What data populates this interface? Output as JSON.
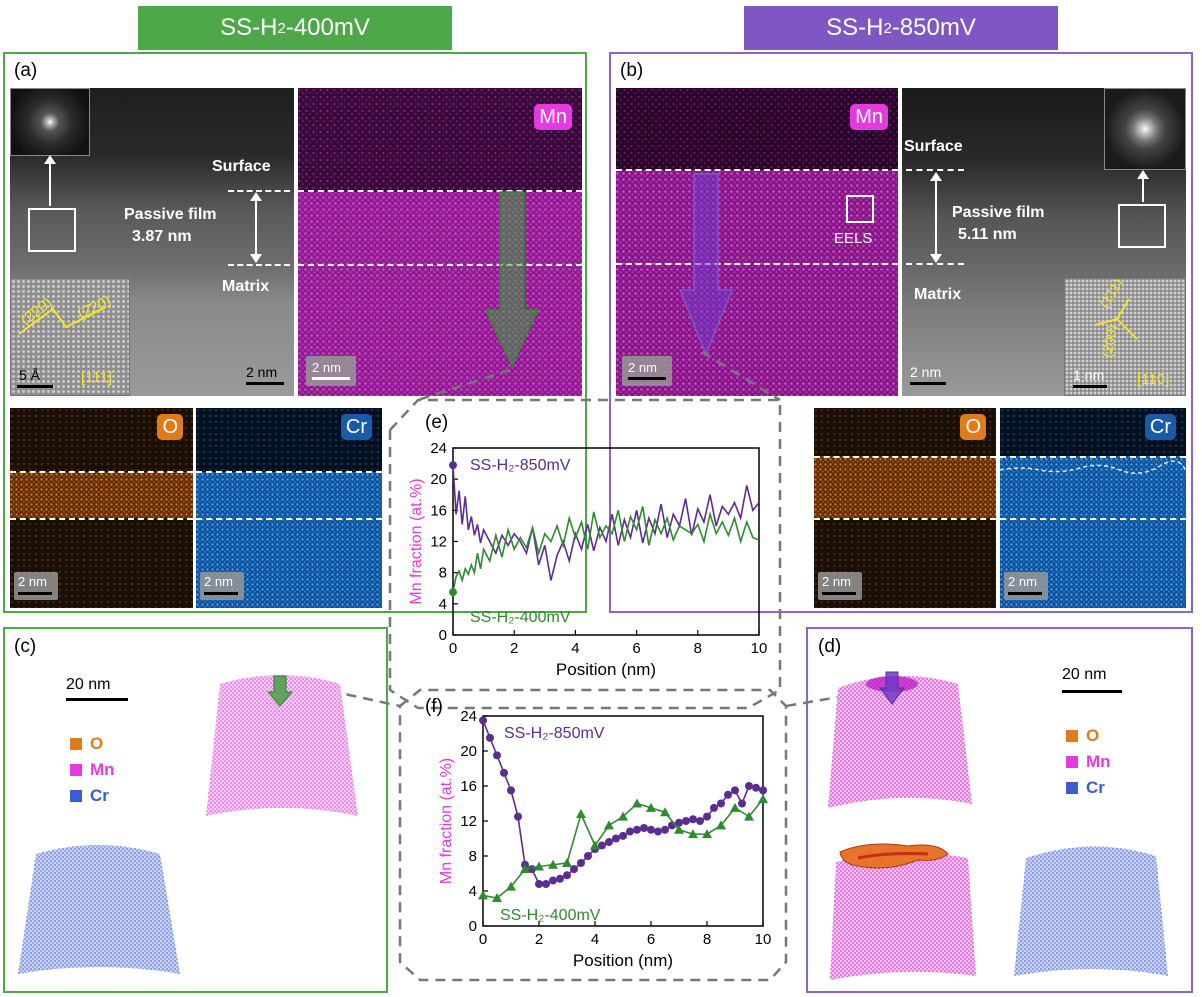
{
  "headers": {
    "left": {
      "prefix": "SS-H",
      "sub": "2",
      "suffix": "-400mV",
      "color": "#4ea849"
    },
    "right": {
      "prefix": "SS-H",
      "sub": "2",
      "suffix": "-850mV",
      "color": "#7e57c2"
    }
  },
  "panels": {
    "a": {
      "label": "(a)",
      "surface": "Surface",
      "film_label": "Passive film",
      "film_thickness": "3.87  nm",
      "matrix": "Matrix",
      "plane1": "(2̄20)",
      "plane2": "(2̄20)",
      "zone": "[111]",
      "scale_inset": "5 Å",
      "scale_main": "2 nm",
      "scale_mn": "2 nm",
      "tag_mn": "Mn",
      "tag_o": "O",
      "tag_cr": "Cr",
      "scale_o": "2 nm",
      "scale_cr": "2 nm"
    },
    "b": {
      "label": "(b)",
      "surface": "Surface",
      "film_label": "Passive film",
      "film_thickness": "5.11  nm",
      "matrix": "Matrix",
      "plane1": "(1̄11)",
      "plane2": "(200)",
      "zone": "[110]",
      "scale_inset": "1 nm",
      "scale_main": "2 nm",
      "scale_mn": "2 nm",
      "tag_mn": "Mn",
      "eels": "EELS",
      "tag_o": "O",
      "tag_cr": "Cr",
      "scale_o": "2 nm",
      "scale_cr": "2 nm"
    },
    "c": {
      "label": "(c)",
      "scale": "20 nm",
      "legend": [
        "O",
        "Mn",
        "Cr"
      ]
    },
    "d": {
      "label": "(d)",
      "scale": "20 nm",
      "legend": [
        "O",
        "Mn",
        "Cr"
      ]
    },
    "e": {
      "label": "(e)"
    },
    "f": {
      "label": "(f)"
    }
  },
  "colors": {
    "o": "#e07b1a",
    "mn": "#e43ae0",
    "cr": "#2c7fd6",
    "cr_legend": "#3b5bd9",
    "green": "#2e8b2e",
    "purple": "#5b2d91"
  },
  "chart_data": [
    {
      "type": "line",
      "panel": "e",
      "xlabel": "Position (nm)",
      "ylabel": "Mn fraction (at.%)",
      "xlim": [
        0,
        10
      ],
      "ylim": [
        0,
        24
      ],
      "xticks": [
        0,
        2,
        4,
        6,
        8,
        10
      ],
      "yticks": [
        0,
        4,
        8,
        12,
        16,
        20,
        24
      ],
      "series": [
        {
          "name": "SS-H₂-850mV",
          "color": "#5b2d91",
          "x": [
            0,
            0.1,
            0.2,
            0.3,
            0.4,
            0.5,
            0.6,
            0.7,
            0.8,
            0.9,
            1.0,
            1.2,
            1.4,
            1.6,
            1.8,
            2.0,
            2.2,
            2.4,
            2.6,
            2.8,
            3.0,
            3.2,
            3.4,
            3.6,
            3.8,
            4.0,
            4.2,
            4.4,
            4.6,
            4.8,
            5.0,
            5.2,
            5.4,
            5.6,
            5.8,
            6.0,
            6.2,
            6.4,
            6.6,
            6.8,
            7.0,
            7.2,
            7.4,
            7.6,
            7.8,
            8.0,
            8.2,
            8.4,
            8.6,
            8.8,
            9.0,
            9.2,
            9.4,
            9.6,
            9.8,
            10.0
          ],
          "y": [
            21.8,
            15.5,
            18.5,
            14.2,
            17.8,
            13.5,
            15.2,
            12.8,
            14.2,
            11.8,
            13.5,
            12.0,
            10.5,
            12.8,
            11.5,
            13.0,
            12.0,
            10.5,
            13.8,
            9.0,
            11.5,
            7.0,
            10.2,
            12.0,
            9.5,
            13.0,
            11.0,
            14.2,
            10.8,
            13.8,
            12.0,
            15.5,
            11.5,
            14.8,
            12.5,
            16.0,
            11.8,
            15.0,
            13.0,
            16.8,
            12.5,
            15.5,
            14.0,
            17.5,
            12.8,
            16.2,
            14.5,
            18.0,
            14.0,
            16.5,
            15.5,
            17.0,
            15.0,
            19.2,
            16.0,
            17.0
          ]
        },
        {
          "name": "SS-H₂-400mV",
          "color": "#2e8b2e",
          "x": [
            0,
            0.1,
            0.2,
            0.3,
            0.4,
            0.5,
            0.6,
            0.7,
            0.8,
            0.9,
            1.0,
            1.2,
            1.4,
            1.6,
            1.8,
            2.0,
            2.2,
            2.4,
            2.6,
            2.8,
            3.0,
            3.2,
            3.4,
            3.6,
            3.8,
            4.0,
            4.2,
            4.4,
            4.6,
            4.8,
            5.0,
            5.2,
            5.4,
            5.6,
            5.8,
            6.0,
            6.2,
            6.4,
            6.6,
            6.8,
            7.0,
            7.2,
            7.4,
            7.6,
            7.8,
            8.0,
            8.2,
            8.4,
            8.6,
            8.8,
            9.0,
            9.2,
            9.4,
            9.6,
            9.8,
            10.0
          ],
          "y": [
            5.5,
            7.5,
            8.2,
            7.0,
            8.5,
            7.8,
            9.0,
            8.0,
            10.5,
            8.5,
            11.0,
            9.5,
            12.8,
            10.0,
            13.5,
            11.0,
            12.5,
            11.2,
            13.8,
            10.5,
            13.0,
            12.0,
            14.0,
            11.5,
            15.0,
            12.5,
            14.5,
            11.0,
            15.8,
            12.5,
            14.0,
            13.0,
            16.0,
            12.0,
            15.2,
            13.5,
            16.5,
            11.5,
            14.8,
            13.0,
            15.0,
            12.2,
            14.0,
            13.5,
            13.0,
            14.2,
            12.0,
            15.5,
            13.0,
            14.5,
            12.8,
            15.0,
            12.0,
            14.5,
            12.5,
            12.2
          ]
        }
      ]
    },
    {
      "type": "line",
      "panel": "f",
      "xlabel": "Position (nm)",
      "ylabel": "Mn fraction (at.%)",
      "xlim": [
        0,
        10
      ],
      "ylim": [
        0,
        24
      ],
      "xticks": [
        0,
        2,
        4,
        6,
        8,
        10
      ],
      "yticks": [
        0,
        4,
        8,
        12,
        16,
        20,
        24
      ],
      "series": [
        {
          "name": "SS-H₂-850mV",
          "color": "#5b2d91",
          "marker": "circle",
          "x": [
            0,
            0.25,
            0.5,
            0.75,
            1.0,
            1.25,
            1.5,
            1.75,
            2.0,
            2.25,
            2.5,
            2.75,
            3.0,
            3.25,
            3.5,
            3.75,
            4.0,
            4.25,
            4.5,
            4.75,
            5.0,
            5.25,
            5.5,
            5.75,
            6.0,
            6.25,
            6.5,
            6.75,
            7.0,
            7.25,
            7.5,
            7.75,
            8.0,
            8.25,
            8.5,
            8.75,
            9.0,
            9.25,
            9.5,
            9.75,
            10.0
          ],
          "y": [
            23.5,
            21.5,
            19.5,
            17.5,
            15.5,
            12.5,
            7.0,
            6.5,
            4.8,
            4.8,
            5.2,
            5.4,
            5.8,
            6.5,
            7.2,
            8.0,
            8.8,
            9.2,
            9.6,
            10.0,
            10.3,
            10.8,
            11.0,
            11.2,
            11.0,
            10.8,
            11.0,
            11.5,
            11.8,
            12.0,
            12.2,
            12.0,
            12.5,
            13.5,
            14.0,
            15.0,
            15.5,
            14.0,
            16.0,
            15.8,
            15.5
          ]
        },
        {
          "name": "SS-H₂-400mV",
          "color": "#2e8b2e",
          "marker": "triangle",
          "x": [
            0,
            0.5,
            1.0,
            1.5,
            2.0,
            2.5,
            3.0,
            3.5,
            4.0,
            4.5,
            5.0,
            5.5,
            6.0,
            6.5,
            7.0,
            7.5,
            8.0,
            8.5,
            9.0,
            9.5,
            10.0
          ],
          "y": [
            3.5,
            3.2,
            4.5,
            6.5,
            6.8,
            7.0,
            7.2,
            12.8,
            9.2,
            11.5,
            12.5,
            14.0,
            13.5,
            13.0,
            11.0,
            10.5,
            10.5,
            11.5,
            13.5,
            12.5,
            14.5
          ]
        }
      ]
    }
  ]
}
